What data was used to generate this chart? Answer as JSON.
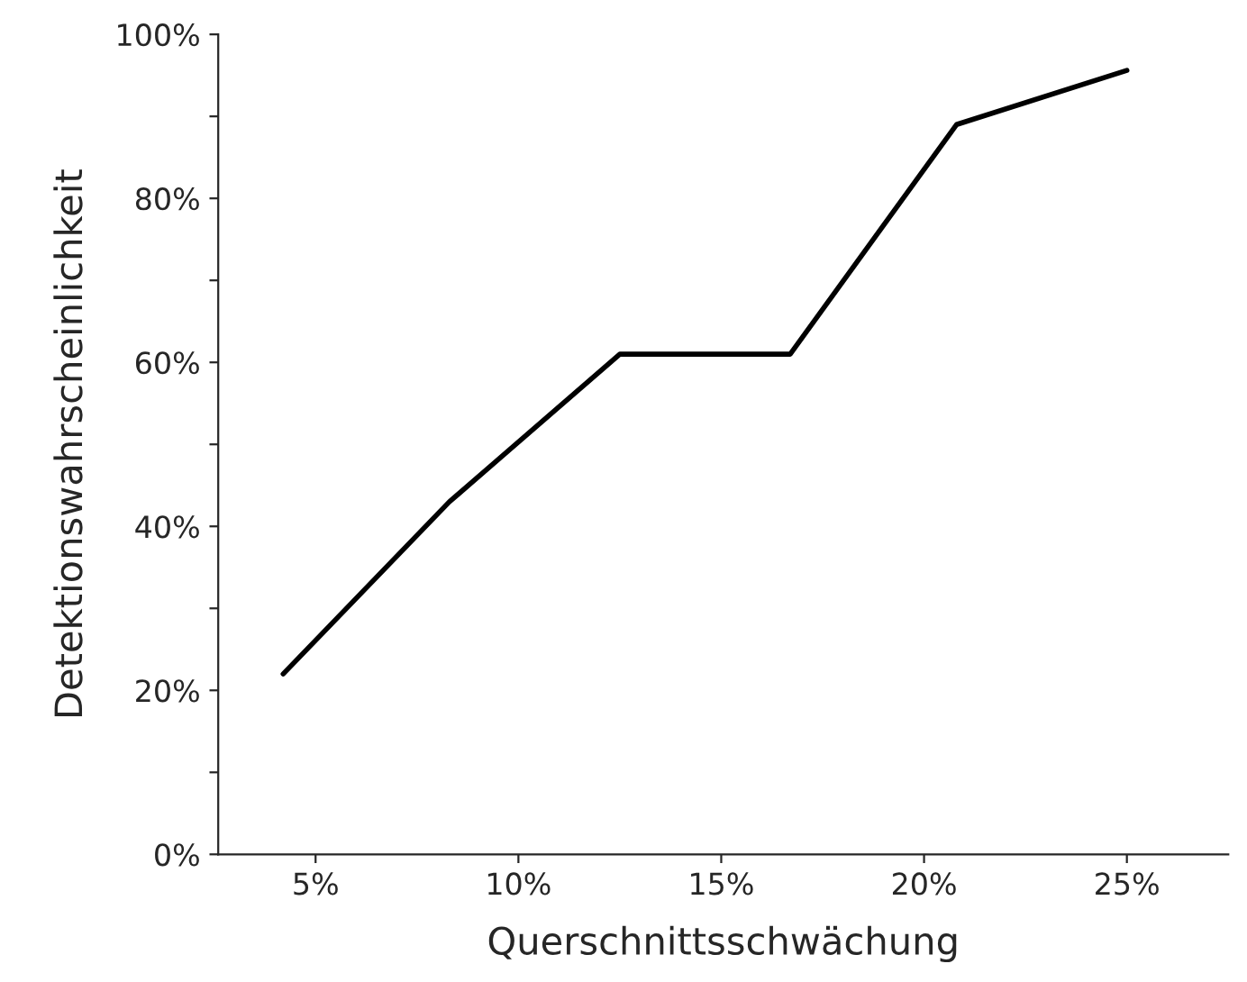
{
  "chart_data": {
    "type": "line",
    "xlabel": "Querschnittsschwächung",
    "ylabel": "Detektionswahrscheinlichkeit",
    "x": [
      4.2,
      8.3,
      12.5,
      16.7,
      20.8,
      25
    ],
    "series": [
      {
        "color": "#000000",
        "values": [
          22,
          43,
          61,
          61,
          89,
          95.6
        ]
      }
    ],
    "xlim": [
      2.6,
      27.5
    ],
    "xticks": [
      {
        "value": 5,
        "label": "5%"
      },
      {
        "value": 10,
        "label": "10%"
      },
      {
        "value": 15,
        "label": "15%"
      },
      {
        "value": 20,
        "label": "20%"
      },
      {
        "value": 25,
        "label": "25%"
      }
    ],
    "ylim": [
      0,
      100
    ],
    "yticks": [
      {
        "value": 0,
        "label": "0%"
      },
      {
        "value": 10,
        "label": null
      },
      {
        "value": 20,
        "label": "20%"
      },
      {
        "value": 30,
        "label": null
      },
      {
        "value": 40,
        "label": "40%"
      },
      {
        "value": 50,
        "label": null
      },
      {
        "value": 60,
        "label": "60%"
      },
      {
        "value": 70,
        "label": null
      },
      {
        "value": 80,
        "label": "80%"
      },
      {
        "value": 90,
        "label": null
      },
      {
        "value": 100,
        "label": "100%"
      }
    ],
    "grid": false,
    "legend": false,
    "marker": "none",
    "line_style": "solid"
  }
}
